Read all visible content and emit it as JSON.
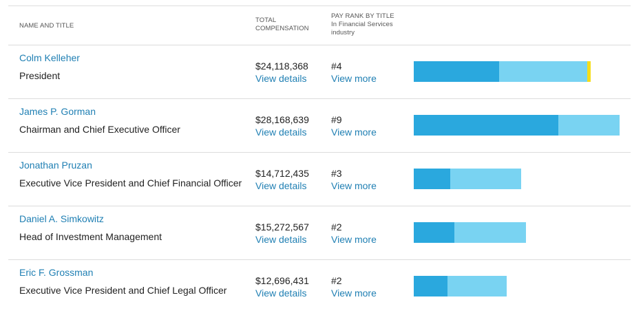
{
  "header": {
    "name_title": "NAME AND TITLE",
    "total_comp_line1": "TOTAL",
    "total_comp_line2": "COMPENSATION",
    "pay_rank_line1": "PAY RANK BY TITLE",
    "pay_rank_line2": "In Financial Services",
    "pay_rank_line3": "industry"
  },
  "colors": {
    "link": "#1f7fb3",
    "segment_1": "#2aa8de",
    "segment_2": "#79d3f2",
    "segment_3": "#f5dd1a",
    "divider": "#dcdcdc"
  },
  "rows": [
    {
      "name": "Colm Kelleher",
      "title": "President",
      "total": "$24,118,368",
      "details_label": "View details",
      "rank": "#4",
      "more_label": "View more"
    },
    {
      "name": "James P. Gorman",
      "title": "Chairman and Chief Executive Officer",
      "total": "$28,168,639",
      "details_label": "View details",
      "rank": "#9",
      "more_label": "View more"
    },
    {
      "name": "Jonathan Pruzan",
      "title": "Executive Vice President and Chief Financial Officer",
      "total": "$14,712,435",
      "details_label": "View details",
      "rank": "#3",
      "more_label": "View more"
    },
    {
      "name": "Daniel A. Simkowitz",
      "title": "Head of Investment Management",
      "total": "$15,272,567",
      "details_label": "View details",
      "rank": "#2",
      "more_label": "View more"
    },
    {
      "name": "Eric F. Grossman",
      "title": "Executive Vice President and Chief Legal Officer",
      "total": "$12,696,431",
      "details_label": "View details",
      "rank": "#2",
      "more_label": "View more"
    }
  ],
  "chart_data": {
    "type": "bar",
    "orientation": "horizontal",
    "stacked": true,
    "units": "USD millions (estimated)",
    "categories": [
      "Colm Kelleher",
      "James P. Gorman",
      "Jonathan Pruzan",
      "Daniel A. Simkowitz",
      "Eric F. Grossman"
    ],
    "series": [
      {
        "name": "segment_1",
        "values": [
          11.6,
          19.7,
          5.0,
          5.5,
          4.6
        ]
      },
      {
        "name": "segment_2",
        "values": [
          12.0,
          8.4,
          9.7,
          9.8,
          8.1
        ]
      },
      {
        "name": "segment_3",
        "values": [
          0.5,
          0.0,
          0.0,
          0.0,
          0.0
        ]
      }
    ],
    "totals": [
      24.118368,
      28.168639,
      14.712435,
      15.272567,
      12.696431
    ],
    "xlim": [
      0,
      28.168639
    ],
    "grid": false,
    "legend": "none"
  }
}
